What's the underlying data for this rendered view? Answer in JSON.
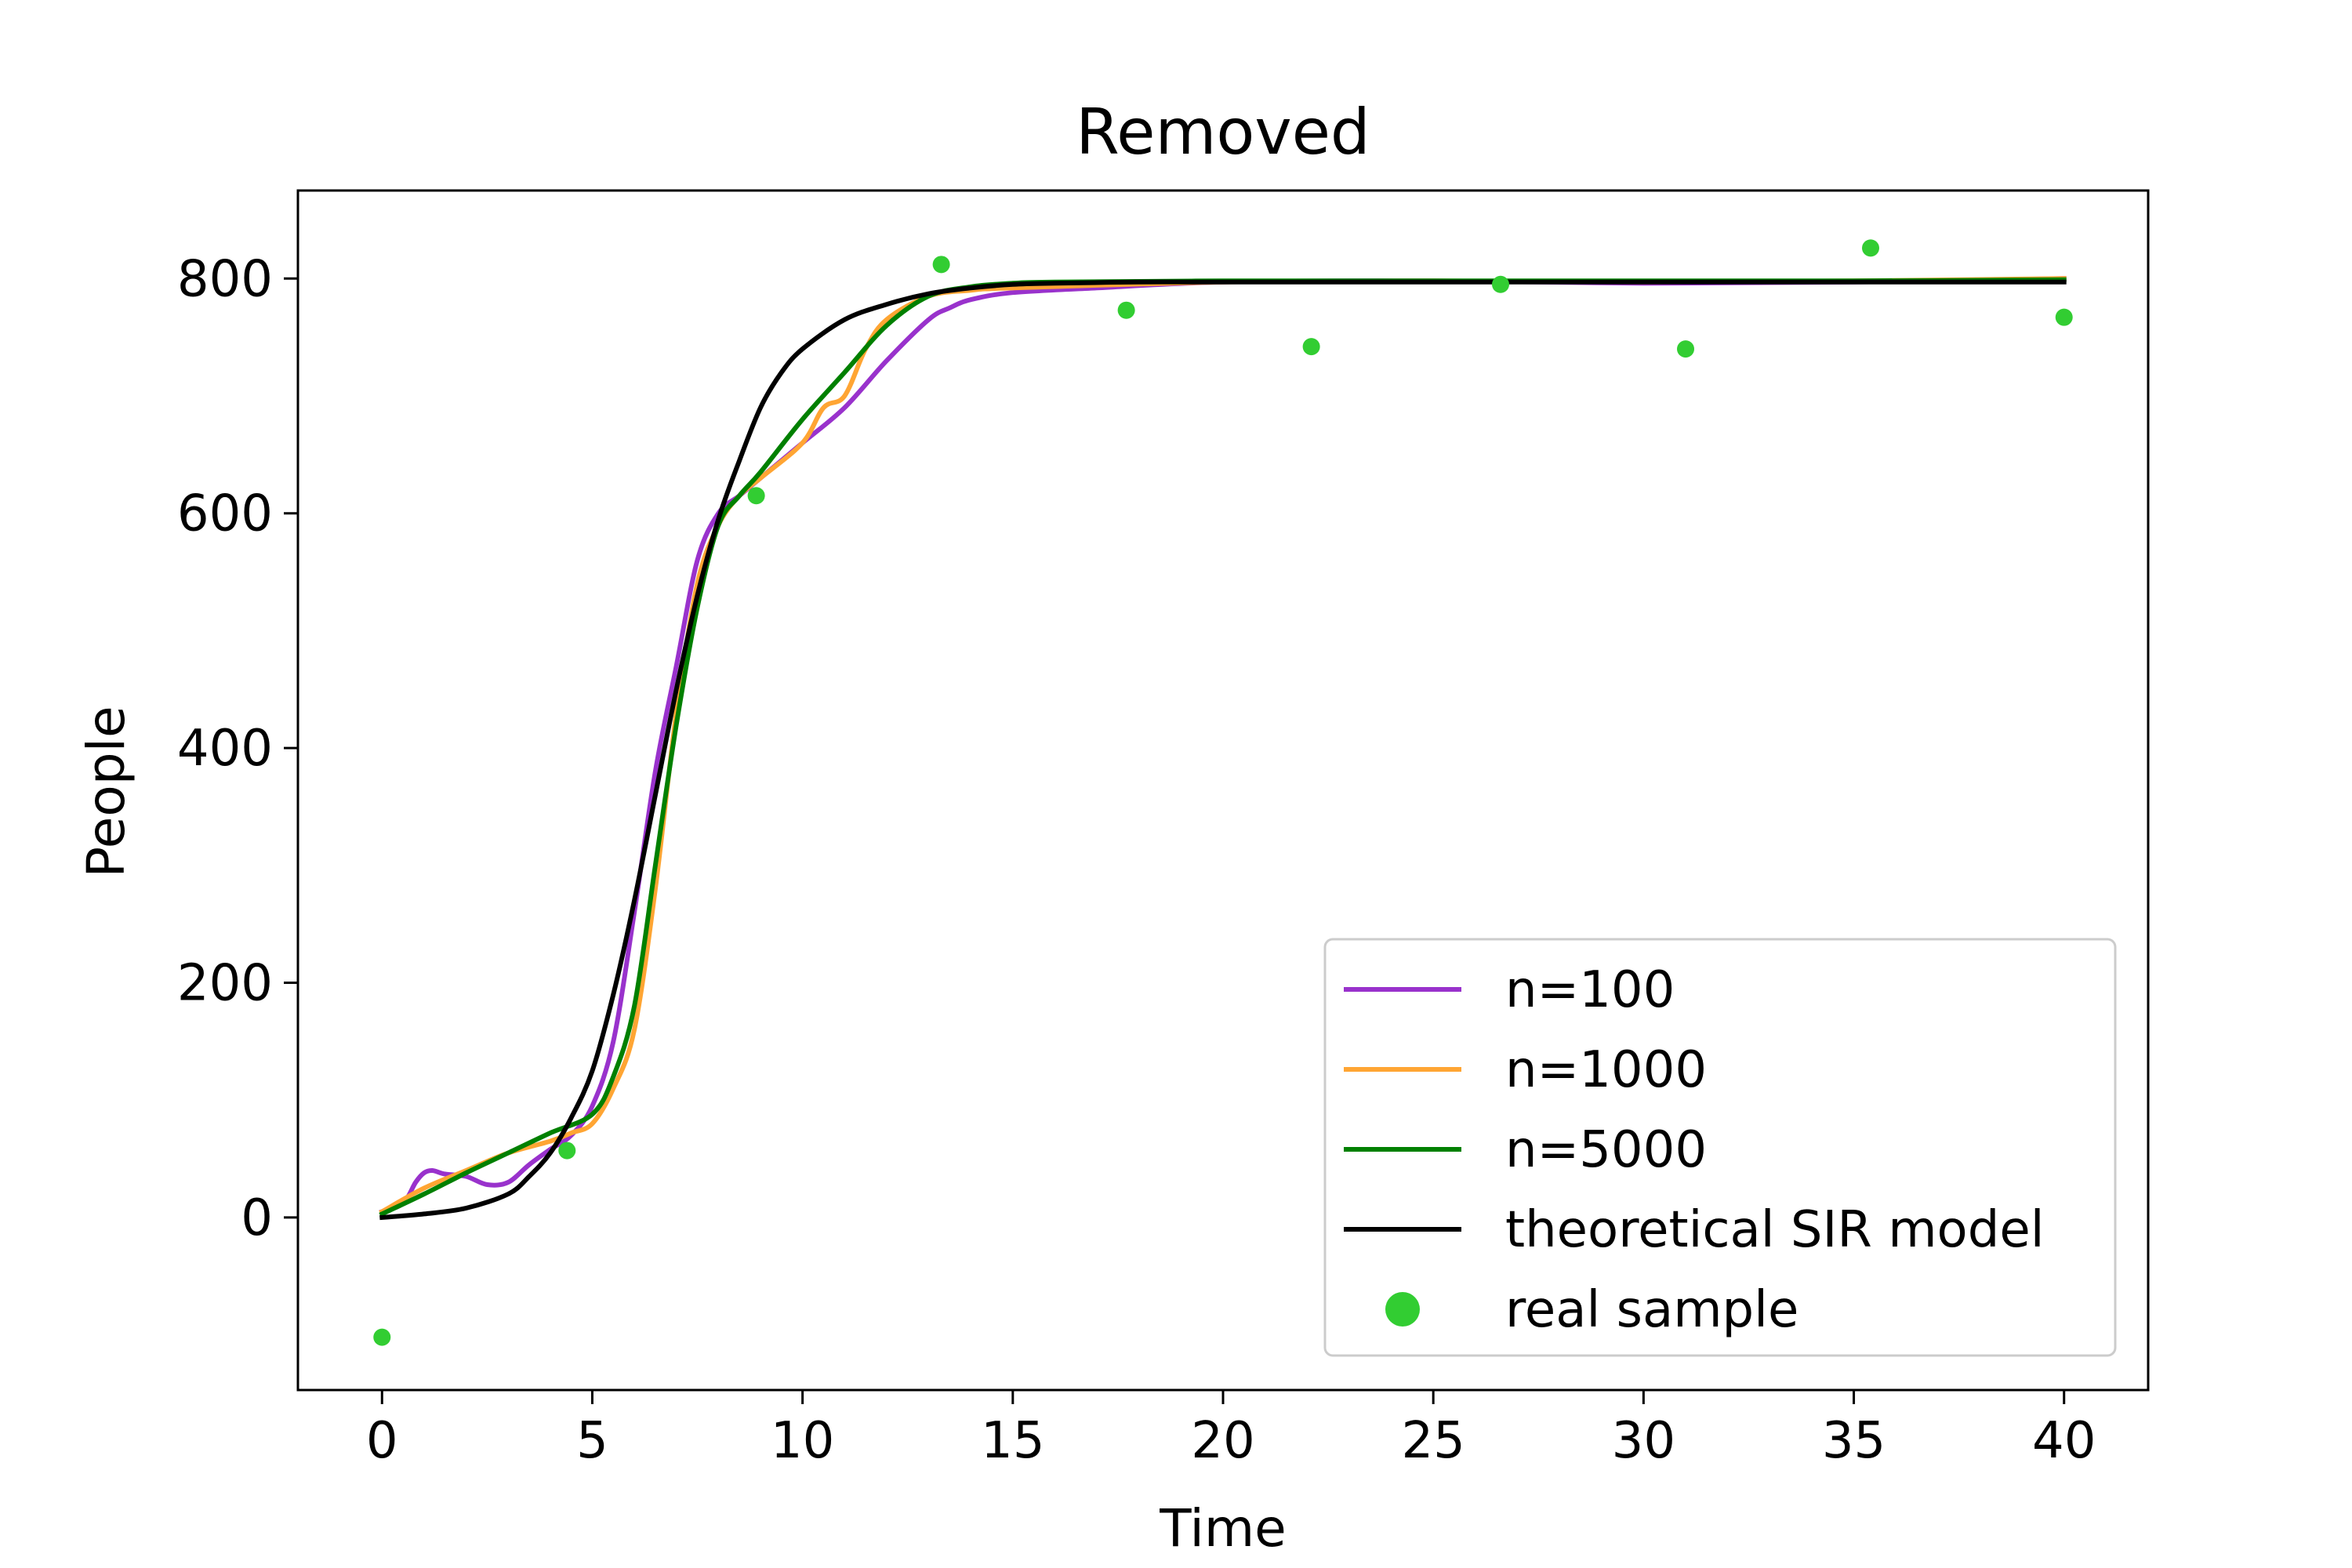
{
  "chart_data": {
    "type": "line",
    "title": "Removed",
    "xlabel": "Time",
    "ylabel": "People",
    "xlim": [
      -2,
      42
    ],
    "ylim": [
      -147,
      875
    ],
    "xticks": [
      0,
      5,
      10,
      15,
      20,
      25,
      30,
      35,
      40
    ],
    "yticks": [
      0,
      200,
      400,
      600,
      800
    ],
    "grid": false,
    "legend_position": "lower-right",
    "colors": {
      "n100": "#9932cc",
      "n1000": "#ffa533",
      "n5000": "#008000",
      "theory": "#000000",
      "sample": "#32cd32"
    },
    "series": [
      {
        "name": "n=100",
        "color": "#9932cc",
        "x": [
          0,
          0.5,
          0.8,
          1.0,
          1.2,
          1.5,
          2.0,
          2.5,
          3.0,
          3.5,
          4.0,
          4.5,
          5.0,
          5.5,
          6.0,
          6.5,
          7.0,
          7.5,
          8.0,
          8.5,
          9.0,
          10.0,
          11.0,
          12.0,
          13.0,
          13.5,
          14.0,
          15.0,
          17.0,
          20.0,
          25.0,
          30.0,
          35.0,
          40.0
        ],
        "y": [
          5,
          12,
          30,
          38,
          40,
          37,
          35,
          28,
          30,
          45,
          58,
          70,
          95,
          150,
          260,
          380,
          470,
          560,
          600,
          615,
          630,
          660,
          690,
          730,
          765,
          775,
          782,
          788,
          792,
          797,
          798,
          796,
          797,
          800
        ]
      },
      {
        "name": "n=1000",
        "color": "#ffa533",
        "x": [
          0,
          1.0,
          2.0,
          3.0,
          4.0,
          4.5,
          5.0,
          5.5,
          6.0,
          6.5,
          7.0,
          7.5,
          8.0,
          8.5,
          9.0,
          10.0,
          10.5,
          11.0,
          11.5,
          12.0,
          13.0,
          14.0,
          15.0,
          20.0,
          25.0,
          30.0,
          35.0,
          40.0
        ],
        "y": [
          5,
          25,
          40,
          55,
          65,
          72,
          80,
          110,
          160,
          280,
          430,
          540,
          590,
          615,
          630,
          660,
          690,
          700,
          740,
          765,
          785,
          790,
          792,
          797,
          798,
          797,
          798,
          800
        ]
      },
      {
        "name": "n=5000",
        "color": "#008000",
        "x": [
          0,
          1.0,
          2.0,
          3.0,
          4.0,
          5.0,
          5.5,
          6.0,
          6.5,
          7.0,
          7.5,
          8.0,
          8.5,
          9.0,
          10.0,
          11.0,
          12.0,
          13.0,
          14.0,
          15.0,
          16.0,
          20.0,
          25.0,
          30.0,
          35.0,
          40.0
        ],
        "y": [
          3,
          20,
          38,
          55,
          72,
          88,
          120,
          180,
          300,
          420,
          520,
          590,
          615,
          635,
          680,
          720,
          760,
          785,
          793,
          796,
          797,
          798,
          798,
          798,
          798,
          799
        ]
      },
      {
        "name": "theoretical SIR model",
        "color": "#000000",
        "x": [
          0,
          1.0,
          2.0,
          3.0,
          3.5,
          4.0,
          4.5,
          5.0,
          5.5,
          6.0,
          6.5,
          7.0,
          7.5,
          8.0,
          8.5,
          9.0,
          9.5,
          10.0,
          11.0,
          12.0,
          13.0,
          14.0,
          15.0,
          16.0,
          18.0,
          20.0,
          25.0,
          30.0,
          35.0,
          40.0
        ],
        "y": [
          0,
          3,
          8,
          20,
          35,
          55,
          85,
          125,
          190,
          270,
          360,
          450,
          530,
          595,
          645,
          690,
          720,
          740,
          765,
          778,
          787,
          792,
          795,
          796,
          797,
          797,
          797,
          797,
          797,
          797
        ]
      }
    ],
    "scatter": {
      "name": "real sample",
      "color": "#32cd32",
      "x": [
        0.0,
        4.4,
        8.9,
        13.3,
        17.7,
        22.1,
        26.6,
        31.0,
        35.4,
        40.0
      ],
      "y": [
        -102,
        57,
        615,
        812,
        773,
        742,
        795,
        740,
        826,
        767
      ]
    }
  }
}
